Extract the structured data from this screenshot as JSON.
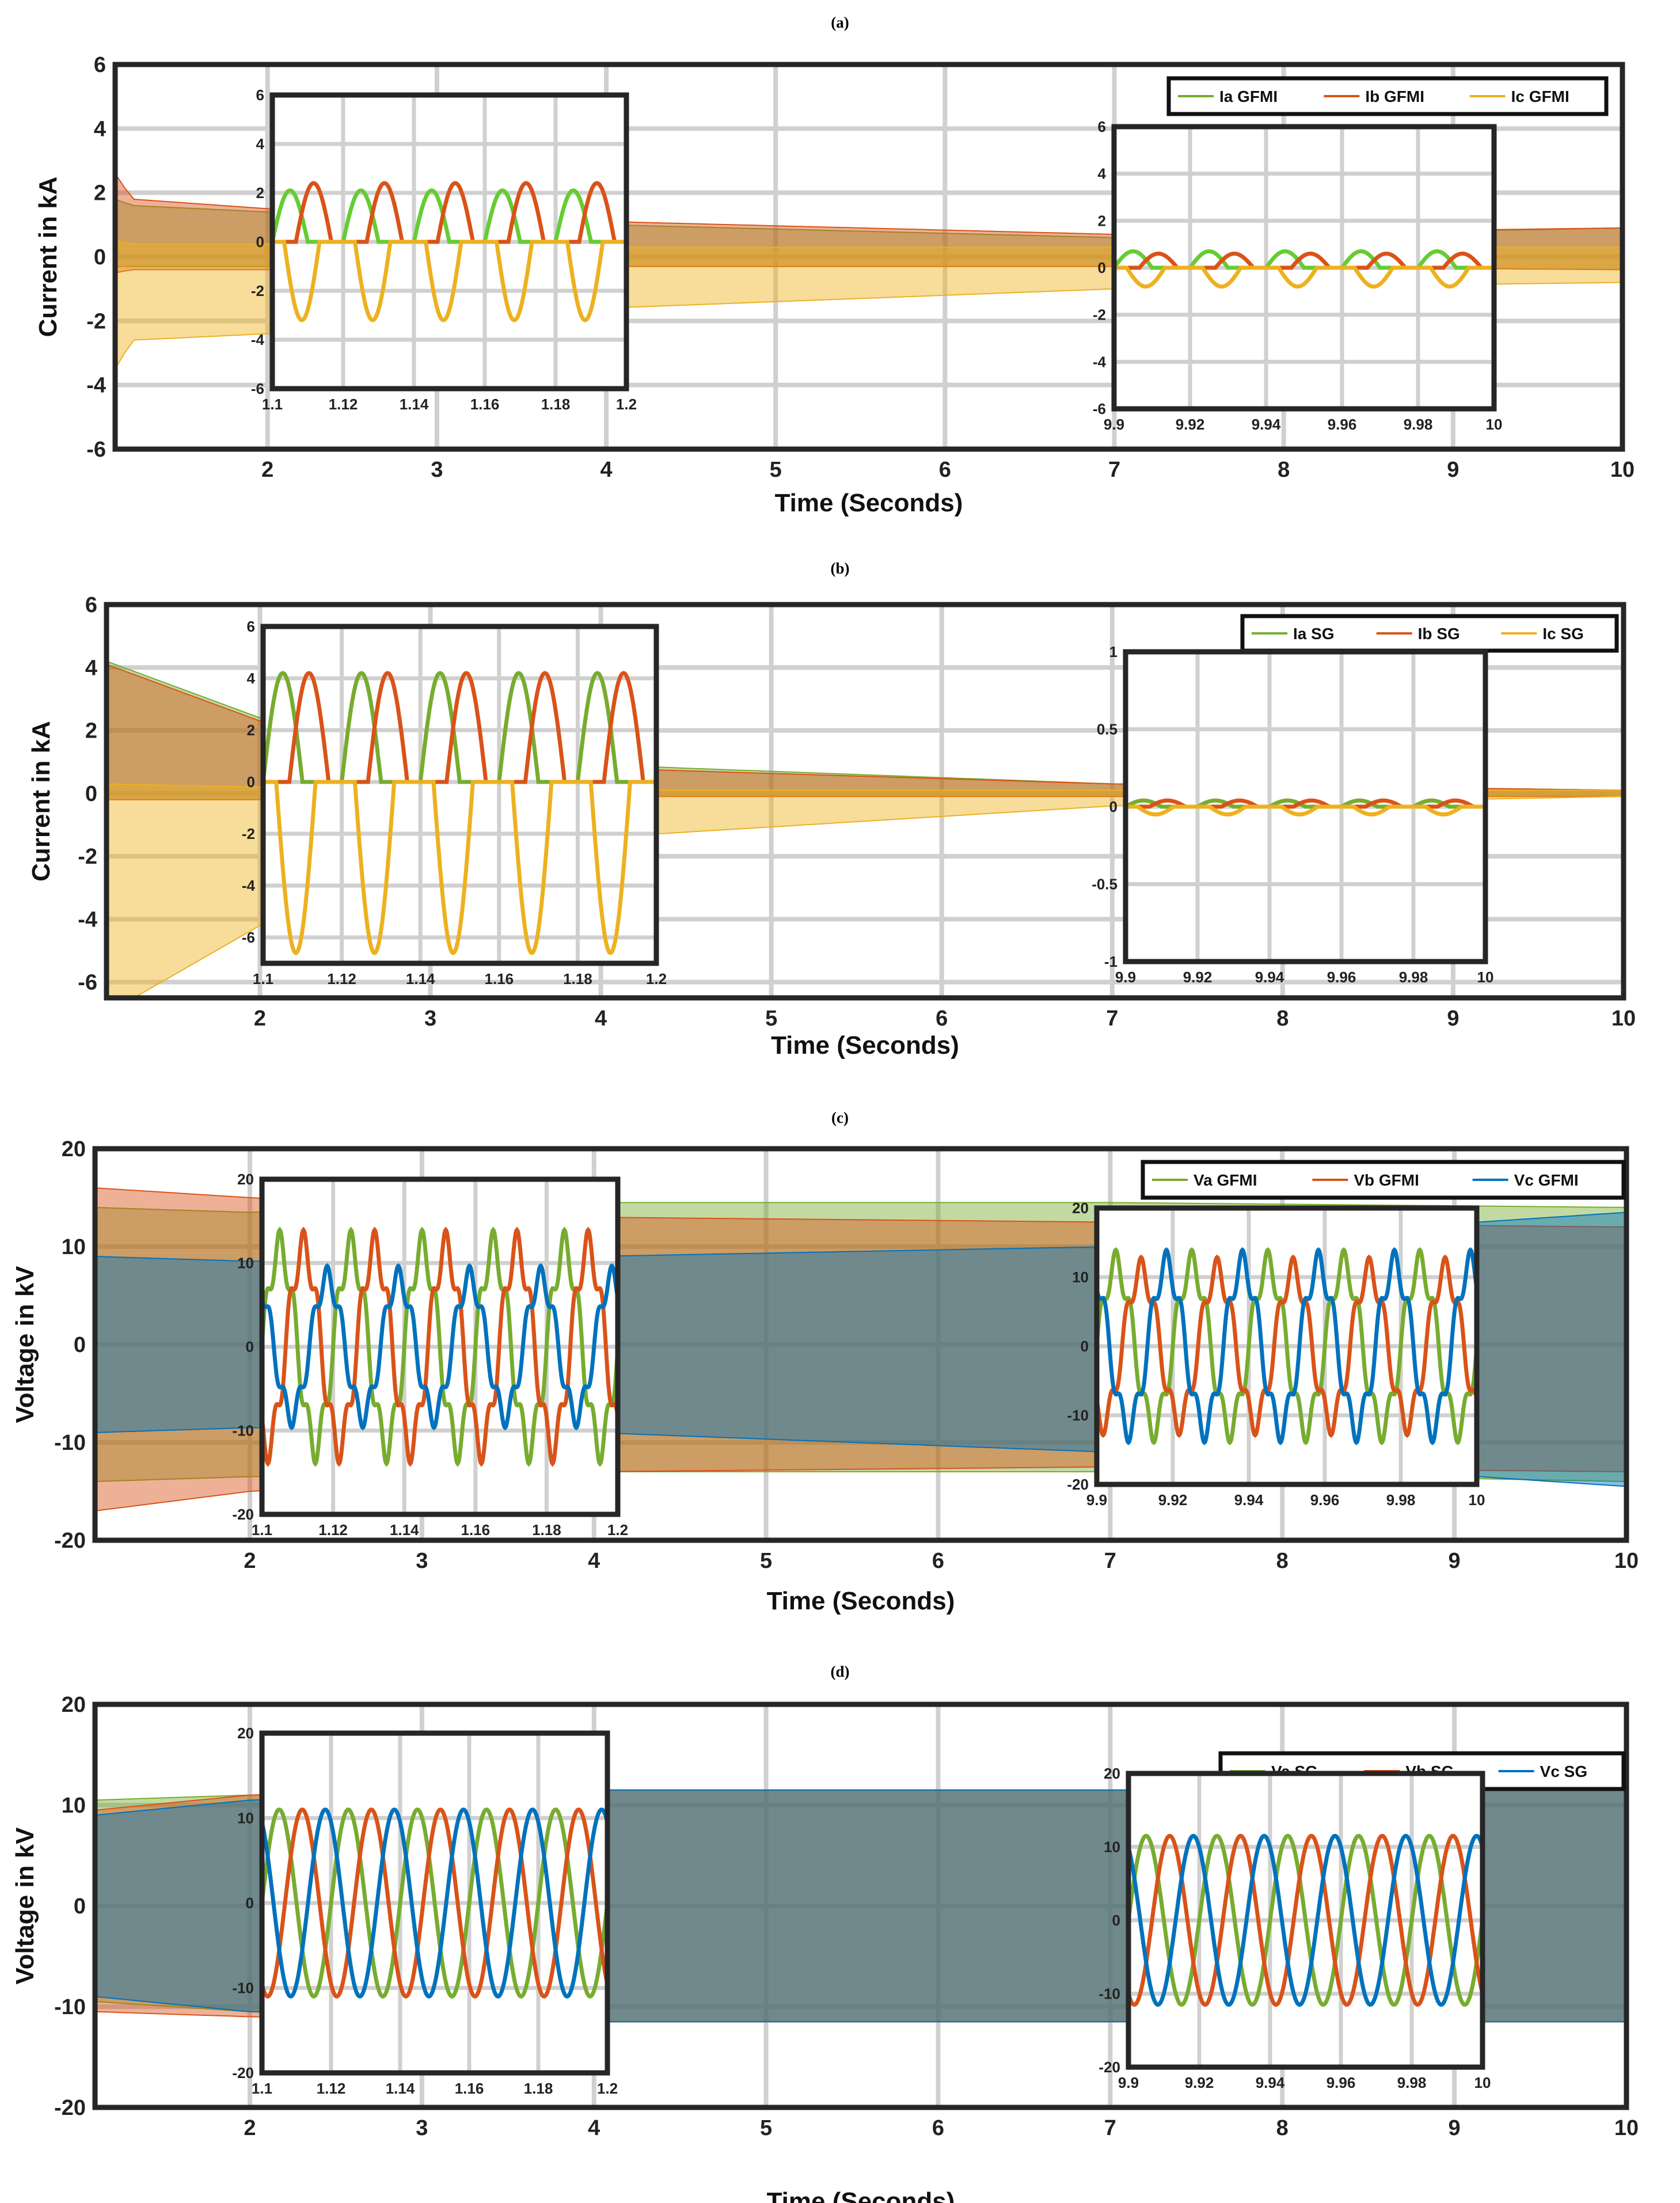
{
  "figure": "four stacked time-domain waveform panels with zoomed insets",
  "colors": {
    "green": "#77AC30",
    "orange": "#D95319",
    "yellow": "#EDB120",
    "blue": "#0072BD",
    "inset_green": "#66CC33",
    "grid": "#d0d0d0",
    "frame": "#262626"
  },
  "chart_data": [
    {
      "panel": "(a)",
      "type": "line",
      "title": "(a)",
      "xlabel": "Time (Seconds)",
      "ylabel": "Current in kA",
      "xlim": [
        1.1,
        10
      ],
      "ylim": [
        -6,
        6
      ],
      "xticks": [
        "2",
        "3",
        "4",
        "5",
        "6",
        "7",
        "8",
        "9",
        "10"
      ],
      "yticks": [
        "6",
        "4",
        "2",
        "0",
        "-2",
        "-4",
        "-6"
      ],
      "legend": [
        "Ia GFMI",
        "Ib GFMI",
        "Ic GFMI"
      ],
      "series_colors": [
        "green",
        "orange",
        "yellow"
      ],
      "envelope": [
        {
          "name": "Ia GFMI",
          "t": [
            1.1,
            1.2,
            2,
            4,
            7,
            10
          ],
          "peak": [
            1.8,
            1.6,
            1.4,
            1.0,
            0.6,
            0.9
          ],
          "trough": [
            -0.3,
            -0.3,
            -0.3,
            -0.3,
            -0.3,
            -0.4
          ]
        },
        {
          "name": "Ib GFMI",
          "t": [
            1.1,
            1.2,
            2,
            4,
            7,
            10
          ],
          "peak": [
            2.6,
            1.8,
            1.5,
            1.1,
            0.7,
            0.9
          ],
          "trough": [
            -0.5,
            -0.4,
            -0.4,
            -0.3,
            -0.3,
            -0.4
          ]
        },
        {
          "name": "Ic GFMI",
          "t": [
            1.1,
            1.2,
            2,
            4,
            7,
            10
          ],
          "peak": [
            0.5,
            0.4,
            0.4,
            0.3,
            0.3,
            0.3
          ],
          "trough": [
            -3.5,
            -2.6,
            -2.4,
            -1.6,
            -1.0,
            -0.8
          ]
        }
      ],
      "insets": [
        {
          "xlim": [
            1.1,
            1.2
          ],
          "ylim": [
            -6,
            6
          ],
          "xticks": [
            "1.1",
            "1.12",
            "1.14",
            "1.16",
            "1.18",
            "1.2"
          ],
          "yticks": [
            "6",
            "4",
            "2",
            "0",
            "-2",
            "-4",
            "-6"
          ],
          "series": [
            {
              "name": "Ia GFMI",
              "peak": 2.1,
              "trough": 0,
              "phase_deg": 0
            },
            {
              "name": "Ib GFMI",
              "peak": 2.4,
              "trough": 0,
              "phase_deg": -120
            },
            {
              "name": "Ic GFMI",
              "peak": 0,
              "trough": -3.2,
              "phase_deg": 120
            }
          ]
        },
        {
          "xlim": [
            9.9,
            10
          ],
          "ylim": [
            -6,
            6
          ],
          "xticks": [
            "9.9",
            "9.92",
            "9.94",
            "9.96",
            "9.98",
            "10"
          ],
          "yticks": [
            "6",
            "4",
            "2",
            "0",
            "-2",
            "-4",
            "-6"
          ],
          "series": [
            {
              "name": "Ia GFMI",
              "peak": 0.7,
              "trough": 0,
              "phase_deg": 0
            },
            {
              "name": "Ib GFMI",
              "peak": 0.6,
              "trough": 0,
              "phase_deg": -120
            },
            {
              "name": "Ic GFMI",
              "peak": 0,
              "trough": -0.8,
              "phase_deg": 120
            }
          ]
        }
      ]
    },
    {
      "panel": "(b)",
      "type": "line",
      "title": "(b)",
      "xlabel": "Time (Seconds)",
      "ylabel": "Current in kA",
      "xlim": [
        1.1,
        10
      ],
      "ylim": [
        -6.5,
        6
      ],
      "xticks": [
        "2",
        "3",
        "4",
        "5",
        "6",
        "7",
        "8",
        "9",
        "10"
      ],
      "yticks": [
        "6",
        "4",
        "2",
        "0",
        "-2",
        "-4",
        "-6"
      ],
      "legend": [
        "Ia SG",
        "Ib SG",
        "Ic SG"
      ],
      "series_colors": [
        "green",
        "orange",
        "yellow"
      ],
      "envelope": [
        {
          "name": "Ia SG",
          "t": [
            1.1,
            2,
            4,
            7,
            10
          ],
          "peak": [
            4.2,
            2.4,
            0.9,
            0.3,
            0.1
          ],
          "trough": [
            -0.2,
            -0.2,
            -0.1,
            -0.1,
            -0.1
          ]
        },
        {
          "name": "Ib SG",
          "t": [
            1.1,
            2,
            4,
            7,
            10
          ],
          "peak": [
            4.1,
            2.3,
            0.8,
            0.3,
            0.1
          ],
          "trough": [
            -0.2,
            -0.2,
            -0.1,
            -0.1,
            -0.1
          ]
        },
        {
          "name": "Ic SG",
          "t": [
            1.1,
            2,
            4,
            7,
            10
          ],
          "peak": [
            0.3,
            0.2,
            0.1,
            0.1,
            0.1
          ],
          "trough": [
            -7.0,
            -4.2,
            -1.4,
            -0.4,
            -0.1
          ]
        }
      ],
      "insets": [
        {
          "xlim": [
            1.1,
            1.2
          ],
          "ylim": [
            -7,
            6
          ],
          "xticks": [
            "1.1",
            "1.12",
            "1.14",
            "1.16",
            "1.18",
            "1.2"
          ],
          "yticks": [
            "6",
            "4",
            "2",
            "0",
            "-2",
            "-4",
            "-6"
          ],
          "series": [
            {
              "name": "Ia SG",
              "peak": 4.2,
              "trough": 0,
              "phase_deg": 0
            },
            {
              "name": "Ib SG",
              "peak": 4.2,
              "trough": 0,
              "phase_deg": -120
            },
            {
              "name": "Ic SG",
              "peak": 0,
              "trough": -6.6,
              "phase_deg": 120
            }
          ]
        },
        {
          "xlim": [
            9.9,
            10
          ],
          "ylim": [
            -1,
            1
          ],
          "xticks": [
            "9.9",
            "9.92",
            "9.94",
            "9.96",
            "9.98",
            "10"
          ],
          "yticks": [
            "1",
            "0.5",
            "0",
            "-0.5",
            "-1"
          ],
          "series": [
            {
              "name": "Ia SG",
              "peak": 0.04,
              "trough": 0,
              "phase_deg": 0
            },
            {
              "name": "Ib SG",
              "peak": 0.04,
              "trough": 0,
              "phase_deg": -120
            },
            {
              "name": "Ic SG",
              "peak": 0,
              "trough": -0.05,
              "phase_deg": 120
            }
          ]
        }
      ]
    },
    {
      "panel": "(c)",
      "type": "line",
      "title": "(c)",
      "xlabel": "Time (Seconds)",
      "ylabel": "Voltage in kV",
      "xlim": [
        1.1,
        10
      ],
      "ylim": [
        -20,
        20
      ],
      "xticks": [
        "2",
        "3",
        "4",
        "5",
        "6",
        "7",
        "8",
        "9",
        "10"
      ],
      "yticks": [
        "20",
        "10",
        "0",
        "-10",
        "-20"
      ],
      "legend": [
        "Va GFMI",
        "Vb GFMI",
        "Vc GFMI"
      ],
      "series_colors": [
        "green",
        "orange",
        "blue"
      ],
      "envelope": [
        {
          "name": "Va GFMI",
          "t": [
            1.1,
            2,
            4,
            7,
            10
          ],
          "peak": [
            14,
            13.5,
            14.5,
            14.5,
            14
          ],
          "trough": [
            -14,
            -13.5,
            -13,
            -13,
            -14
          ]
        },
        {
          "name": "Vb GFMI",
          "t": [
            1.1,
            2,
            4,
            7,
            10
          ],
          "peak": [
            16,
            15,
            13,
            12.5,
            12
          ],
          "trough": [
            -17,
            -15,
            -13,
            -12.5,
            -13
          ]
        },
        {
          "name": "Vc GFMI",
          "t": [
            1.1,
            2,
            4,
            7,
            10
          ],
          "peak": [
            9,
            8.5,
            9,
            10,
            13.5
          ],
          "trough": [
            -9,
            -8.5,
            -9,
            -11,
            -14.5
          ]
        }
      ],
      "insets": [
        {
          "xlim": [
            1.1,
            1.2
          ],
          "ylim": [
            -20,
            20
          ],
          "xticks": [
            "1.1",
            "1.12",
            "1.14",
            "1.16",
            "1.18",
            "1.2"
          ],
          "yticks": [
            "20",
            "10",
            "0",
            "-10",
            "-20"
          ],
          "series": [
            {
              "name": "Va GFMI",
              "amplitude": 13,
              "phase_deg": 0
            },
            {
              "name": "Vb GFMI",
              "amplitude": 13,
              "phase_deg": -120
            },
            {
              "name": "Vc GFMI",
              "amplitude": 9,
              "phase_deg": 120
            }
          ]
        },
        {
          "xlim": [
            9.9,
            10
          ],
          "ylim": [
            -20,
            20
          ],
          "xticks": [
            "9.9",
            "9.92",
            "9.94",
            "9.96",
            "9.98",
            "10"
          ],
          "yticks": [
            "20",
            "10",
            "0",
            "-10",
            "-20"
          ],
          "series": [
            {
              "name": "Va GFMI",
              "amplitude": 13,
              "phase_deg": 0
            },
            {
              "name": "Vb GFMI",
              "amplitude": 12,
              "phase_deg": -120
            },
            {
              "name": "Vc GFMI",
              "amplitude": 13,
              "phase_deg": 120
            }
          ]
        }
      ]
    },
    {
      "panel": "(d)",
      "type": "line",
      "title": "(d)",
      "xlabel": "Time (Seconds)",
      "ylabel": "Voltage in kV",
      "xlim": [
        1.1,
        10
      ],
      "ylim": [
        -20,
        20
      ],
      "xticks": [
        "2",
        "3",
        "4",
        "5",
        "6",
        "7",
        "8",
        "9",
        "10"
      ],
      "yticks": [
        "20",
        "10",
        "0",
        "-10",
        "-20"
      ],
      "legend": [
        "Va SG",
        "Vb SG",
        "Vc SG"
      ],
      "series_colors": [
        "green",
        "orange",
        "blue"
      ],
      "envelope": [
        {
          "name": "Va SG",
          "t": [
            1.1,
            2,
            4,
            7,
            10
          ],
          "peak": [
            10.5,
            11,
            11.5,
            11.5,
            11.5
          ],
          "trough": [
            -9.5,
            -10.5,
            -11.5,
            -11.5,
            -11.5
          ]
        },
        {
          "name": "Vb SG",
          "t": [
            1.1,
            2,
            4,
            7,
            10
          ],
          "peak": [
            9.5,
            11,
            11.5,
            11.5,
            11.5
          ],
          "trough": [
            -10.5,
            -11,
            -11.5,
            -11.5,
            -11.5
          ]
        },
        {
          "name": "Vc SG",
          "t": [
            1.1,
            2,
            4,
            7,
            10
          ],
          "peak": [
            9,
            10.5,
            11.5,
            11.5,
            11.5
          ],
          "trough": [
            -9,
            -10.5,
            -11.5,
            -11.5,
            -11.5
          ]
        }
      ],
      "insets": [
        {
          "xlim": [
            1.1,
            1.2
          ],
          "ylim": [
            -20,
            20
          ],
          "xticks": [
            "1.1",
            "1.12",
            "1.14",
            "1.16",
            "1.18",
            "1.2"
          ],
          "yticks": [
            "20",
            "10",
            "0",
            "-10",
            "-20"
          ],
          "series": [
            {
              "name": "Va SG",
              "amplitude": 11,
              "phase_deg": 0
            },
            {
              "name": "Vb SG",
              "amplitude": 11,
              "phase_deg": -120
            },
            {
              "name": "Vc SG",
              "amplitude": 11,
              "phase_deg": 120
            }
          ]
        },
        {
          "xlim": [
            9.9,
            10
          ],
          "ylim": [
            -20,
            20
          ],
          "xticks": [
            "9.9",
            "9.92",
            "9.94",
            "9.96",
            "9.98",
            "10"
          ],
          "yticks": [
            "20",
            "10",
            "0",
            "-10",
            "-20"
          ],
          "series": [
            {
              "name": "Va SG",
              "amplitude": 11.5,
              "phase_deg": 0
            },
            {
              "name": "Vb SG",
              "amplitude": 11.5,
              "phase_deg": -120
            },
            {
              "name": "Vc SG",
              "amplitude": 11.5,
              "phase_deg": 120
            }
          ]
        }
      ]
    }
  ]
}
